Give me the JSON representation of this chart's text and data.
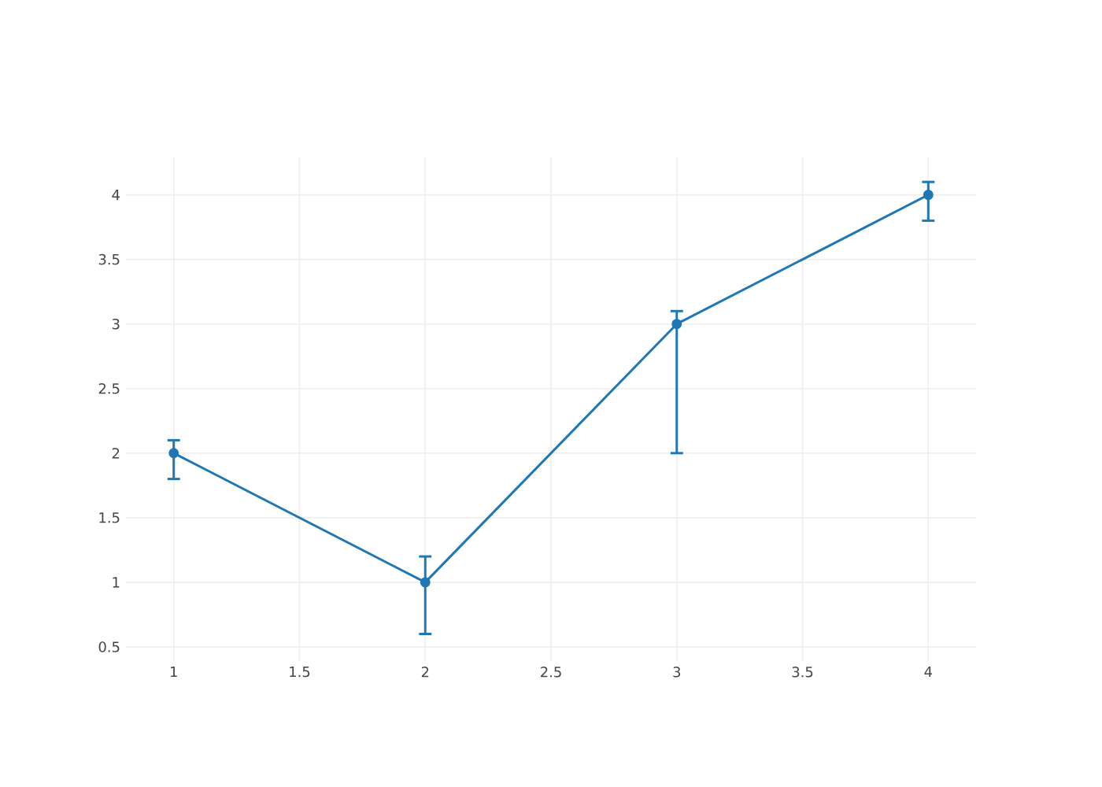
{
  "chart_data": {
    "type": "line",
    "x": [
      1,
      2,
      3,
      4
    ],
    "series": [
      {
        "color": "#1f77b4",
        "values": [
          2,
          1,
          3,
          4
        ],
        "errors": [
          [
            1.8,
            2.1
          ],
          [
            0.6,
            1.2
          ],
          [
            2,
            3.1
          ],
          [
            3.8,
            4.1
          ]
        ]
      }
    ],
    "xlim": [
      0.81,
      4.19
    ],
    "ylim": [
      0.39,
      4.29
    ],
    "xticks": [
      1,
      1.5,
      2,
      2.5,
      3,
      3.5,
      4
    ],
    "yticks": [
      0.5,
      1,
      1.5,
      2,
      2.5,
      3,
      3.5,
      4
    ],
    "grid": true,
    "marker": "circle",
    "line_style": "solid"
  }
}
